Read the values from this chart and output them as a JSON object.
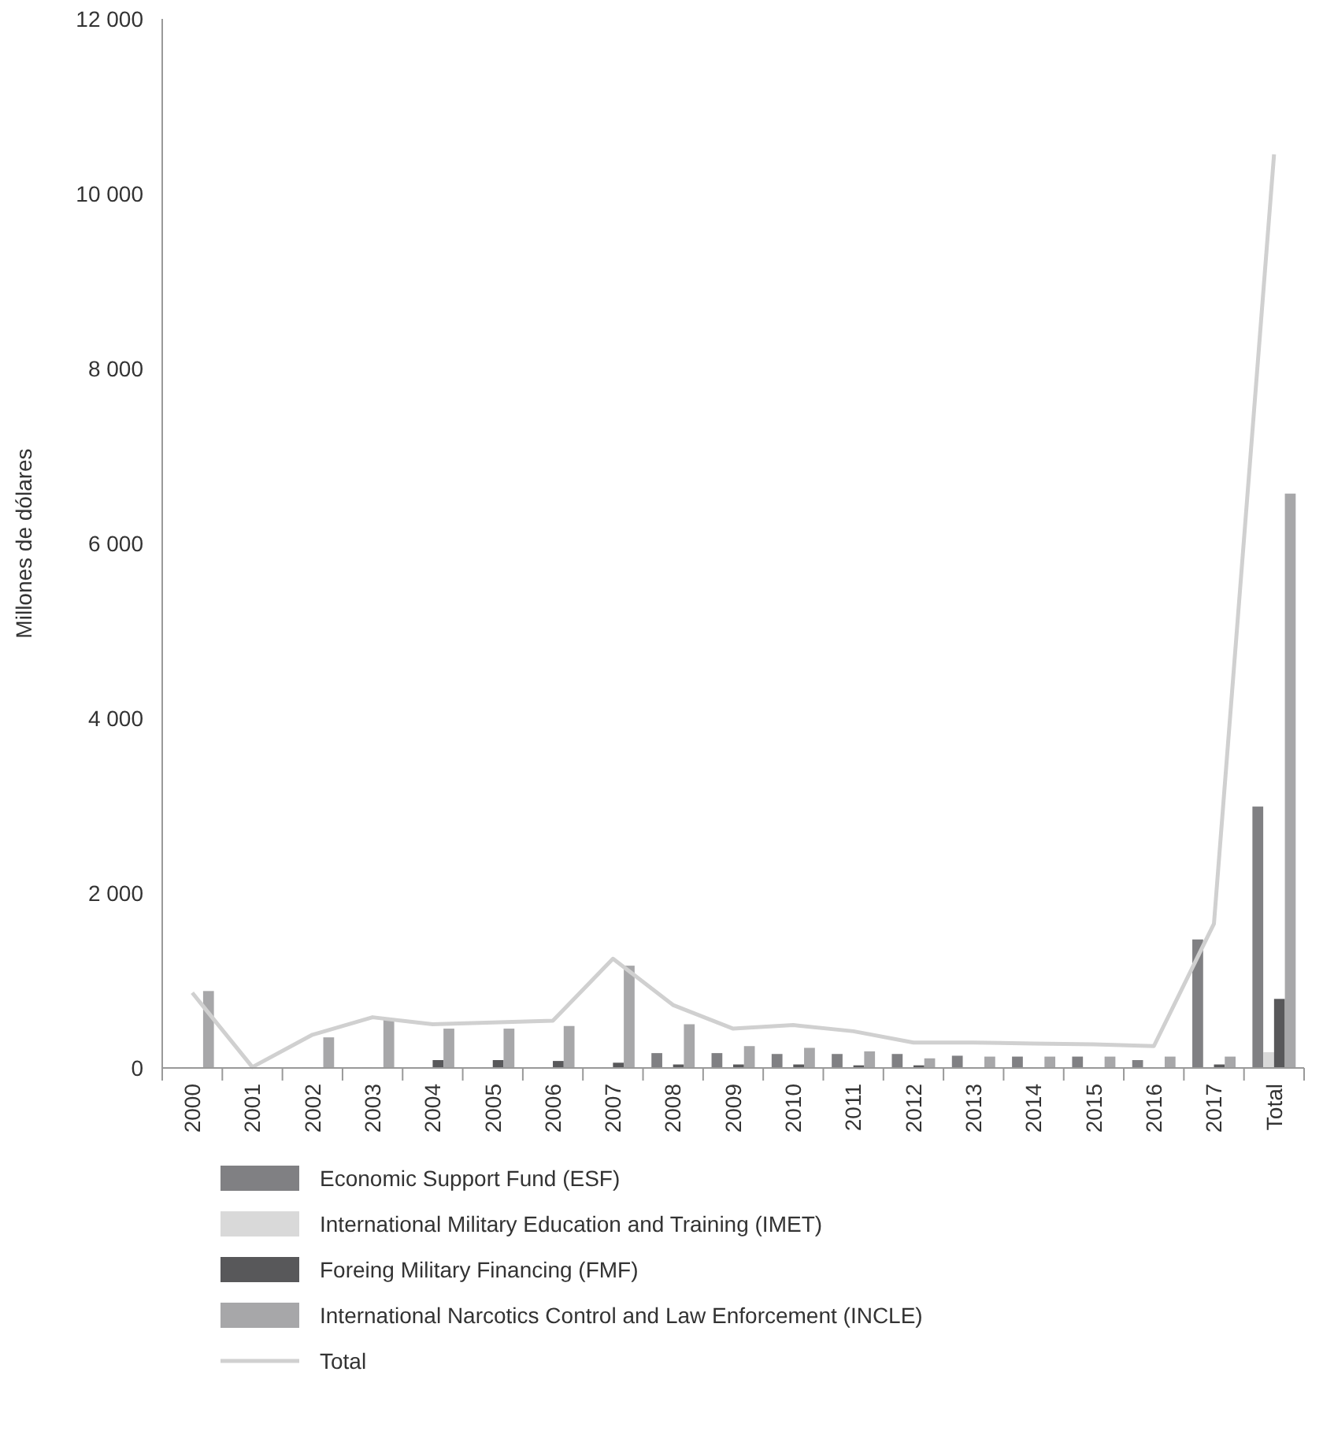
{
  "chart_data": {
    "type": "bar",
    "ylabel": "Millones de dólares",
    "categories": [
      "2000",
      "2001",
      "2002",
      "2003",
      "2004",
      "2005",
      "2006",
      "2007",
      "2008",
      "2009",
      "2010",
      "2011",
      "2012",
      "2013",
      "2014",
      "2015",
      "2016",
      "2017",
      "Total"
    ],
    "series": [
      {
        "name": "Economic Support Fund (ESF)",
        "color": "#808083",
        "values": [
          0,
          0,
          0,
          0,
          0,
          0,
          0,
          0,
          170,
          170,
          160,
          160,
          160,
          140,
          130,
          130,
          90,
          1470,
          2990
        ]
      },
      {
        "name": "International Military Education and Training (IMET)",
        "color": "#d9d9d9",
        "values": [
          10,
          10,
          10,
          10,
          10,
          10,
          10,
          10,
          10,
          10,
          10,
          10,
          10,
          10,
          10,
          10,
          10,
          10,
          180
        ]
      },
      {
        "name": "Foreing Military Financing (FMF)",
        "color": "#58585a",
        "values": [
          0,
          0,
          0,
          0,
          90,
          90,
          80,
          60,
          40,
          40,
          40,
          30,
          30,
          0,
          0,
          0,
          0,
          40,
          790
        ]
      },
      {
        "name": "International Narcotics Control and Law Enforcement (INCLE)",
        "color": "#a7a7a9",
        "values": [
          880,
          null,
          350,
          560,
          450,
          450,
          480,
          1170,
          500,
          250,
          230,
          190,
          110,
          130,
          130,
          130,
          130,
          130,
          6570
        ]
      },
      {
        "name": "Total",
        "type": "line",
        "color": "#d0d0d0",
        "values": [
          860,
          10,
          380,
          580,
          500,
          520,
          540,
          1250,
          720,
          450,
          490,
          420,
          290,
          290,
          280,
          270,
          250,
          1650,
          10450
        ]
      }
    ],
    "ylim": [
      0,
      12000
    ],
    "yticks": [
      {
        "value": 0,
        "label": "0"
      },
      {
        "value": 2000,
        "label": "2 000"
      },
      {
        "value": 4000,
        "label": "4 000"
      },
      {
        "value": 6000,
        "label": "6 000"
      },
      {
        "value": 8000,
        "label": "8 000"
      },
      {
        "value": 10000,
        "label": "10 000"
      },
      {
        "value": 12000,
        "label": "12 000"
      }
    ],
    "legend": "bottom",
    "grid": false
  }
}
